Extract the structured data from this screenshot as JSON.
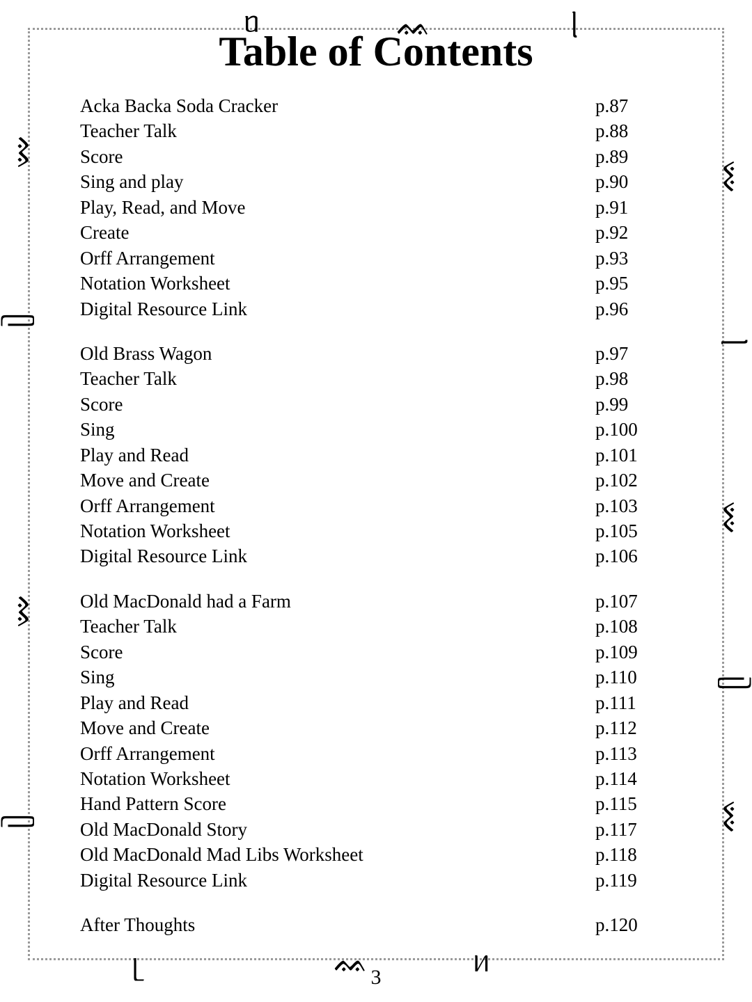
{
  "title": "Table of Contents",
  "page_number": "3",
  "style": {
    "background_color": "#ffffff",
    "text_color": "#000000",
    "font_family": "Comic Sans MS",
    "title_fontsize_pt": 45,
    "body_fontsize_pt": 20,
    "border_color": "#9a9a9a",
    "border_style": "dotted"
  },
  "groups": [
    {
      "items": [
        {
          "label": "Acka Backa Soda Cracker",
          "page": "p.87"
        },
        {
          "label": "Teacher Talk",
          "page": "p.88"
        },
        {
          "label": "Score",
          "page": "p.89"
        },
        {
          "label": "Sing and play",
          "page": "p.90"
        },
        {
          "label": "Play, Read, and Move",
          "page": "p.91"
        },
        {
          "label": "Create",
          "page": "p.92"
        },
        {
          "label": "Orff Arrangement",
          "page": "p.93"
        },
        {
          "label": "Notation Worksheet",
          "page": "p.95"
        },
        {
          "label": "Digital Resource Link",
          "page": "p.96"
        }
      ]
    },
    {
      "items": [
        {
          "label": "Old Brass Wagon",
          "page": "p.97"
        },
        {
          "label": "Teacher Talk",
          "page": "p.98"
        },
        {
          "label": "Score",
          "page": "p.99"
        },
        {
          "label": "Sing",
          "page": "p.100"
        },
        {
          "label": "Play and Read",
          "page": "p.101"
        },
        {
          "label": "Move and Create",
          "page": "p.102"
        },
        {
          "label": "Orff Arrangement",
          "page": "p.103"
        },
        {
          "label": "Notation Worksheet",
          "page": "p.105"
        },
        {
          "label": "Digital Resource Link",
          "page": "p.106"
        }
      ]
    },
    {
      "items": [
        {
          "label": "Old MacDonald had a Farm",
          "page": "p.107"
        },
        {
          "label": "Teacher Talk",
          "page": "p.108"
        },
        {
          "label": "Score",
          "page": "p.109"
        },
        {
          "label": "Sing",
          "page": "p.110"
        },
        {
          "label": "Play and Read",
          "page": "p.111"
        },
        {
          "label": "Move and Create",
          "page": "p.112"
        },
        {
          "label": "Orff Arrangement",
          "page": "p.113"
        },
        {
          "label": "Notation Worksheet",
          "page": "p.114"
        },
        {
          "label": "Hand Pattern Score",
          "page": "p.115"
        },
        {
          "label": "Old MacDonald Story",
          "page": "p.117"
        },
        {
          "label": "Old MacDonald Mad Libs Worksheet",
          "page": "p.118"
        },
        {
          "label": "Digital Resource Link",
          "page": "p.119"
        }
      ]
    },
    {
      "items": [
        {
          "label": "After Thoughts",
          "page": "p.120"
        }
      ]
    }
  ]
}
